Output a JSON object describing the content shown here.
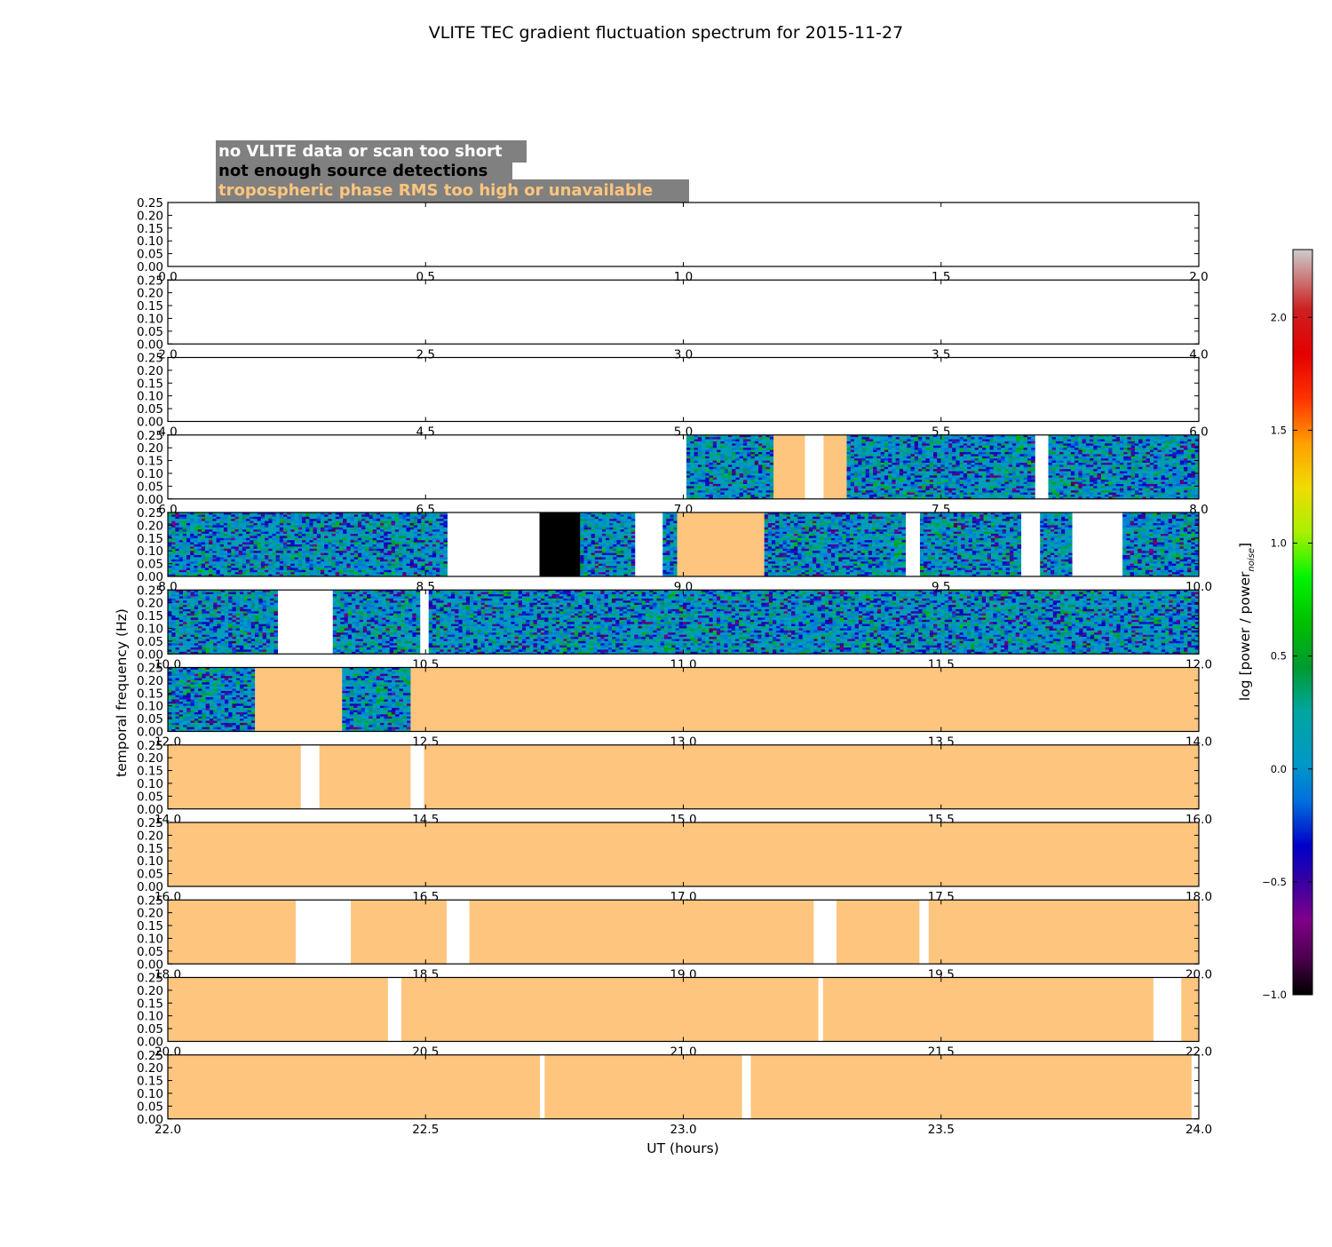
{
  "chart_data": {
    "type": "heatmap",
    "title": "VLITE TEC gradient fluctuation spectrum for 2015-11-27",
    "xlabel": "UT (hours)",
    "ylabel": "temporal frequency (Hz)",
    "y_ticks": [
      "0.00",
      "0.05",
      "0.10",
      "0.15",
      "0.20",
      "0.25"
    ],
    "ylim": [
      0,
      0.25
    ],
    "legend": {
      "position": "top-left",
      "entries": [
        {
          "label": "no VLITE data or scan too short",
          "color": "#ffffff",
          "category": "nodata"
        },
        {
          "label": "not enough source detections",
          "color": "#000000",
          "category": "nodet"
        },
        {
          "label": "tropospheric phase RMS too high or unavailable",
          "color": "#fec57e",
          "category": "tropo"
        }
      ]
    },
    "colorbar": {
      "label": "log [power / power",
      "label_subscript": "noise",
      "label_close": "]",
      "range": [
        -1.0,
        2.3
      ],
      "tick_values": [
        -1.0,
        -0.5,
        0.0,
        0.5,
        1.0,
        1.5,
        2.0
      ],
      "ticks": [
        "−1.0",
        "−0.5",
        "0.0",
        "0.5",
        "1.0",
        "1.5",
        "2.0"
      ],
      "colormap": "spectral"
    },
    "panels": [
      {
        "xlim": [
          0,
          2
        ],
        "xticks": [
          "0.0",
          "0.5",
          "1.0",
          "1.5",
          "2.0"
        ],
        "segments": []
      },
      {
        "xlim": [
          2,
          4
        ],
        "xticks": [
          "2.0",
          "2.5",
          "3.0",
          "3.5",
          "4.0"
        ],
        "segments": []
      },
      {
        "xlim": [
          4,
          6
        ],
        "xticks": [
          "4.0",
          "4.5",
          "5.0",
          "5.5",
          "6.0"
        ],
        "segments": []
      },
      {
        "xlim": [
          6,
          8
        ],
        "xticks": [
          "6.0",
          "6.5",
          "7.0",
          "7.5",
          "8.0"
        ],
        "segments": [
          {
            "start": 7.006,
            "end": 7.175,
            "type": "data"
          },
          {
            "start": 7.175,
            "end": 7.236,
            "type": "tropo"
          },
          {
            "start": 7.272,
            "end": 7.317,
            "type": "tropo"
          },
          {
            "start": 7.317,
            "end": 7.682,
            "type": "data"
          },
          {
            "start": 7.708,
            "end": 8.0,
            "type": "data"
          }
        ]
      },
      {
        "xlim": [
          8,
          10
        ],
        "xticks": [
          "8.0",
          "8.5",
          "9.0",
          "9.5",
          "10.0"
        ],
        "segments": [
          {
            "start": 8.0,
            "end": 8.542,
            "type": "data"
          },
          {
            "start": 8.721,
            "end": 8.8,
            "type": "nodet"
          },
          {
            "start": 8.8,
            "end": 8.906,
            "type": "data"
          },
          {
            "start": 8.96,
            "end": 8.988,
            "type": "data"
          },
          {
            "start": 8.988,
            "end": 9.157,
            "type": "tropo"
          },
          {
            "start": 9.157,
            "end": 9.431,
            "type": "data"
          },
          {
            "start": 9.459,
            "end": 9.655,
            "type": "data"
          },
          {
            "start": 9.692,
            "end": 9.754,
            "type": "data"
          },
          {
            "start": 9.852,
            "end": 10.0,
            "type": "data"
          }
        ]
      },
      {
        "xlim": [
          10,
          12
        ],
        "xticks": [
          "10.0",
          "10.5",
          "11.0",
          "11.5",
          "12.0"
        ],
        "segments": [
          {
            "start": 10.0,
            "end": 10.213,
            "type": "data"
          },
          {
            "start": 10.32,
            "end": 10.489,
            "type": "data"
          },
          {
            "start": 10.506,
            "end": 12.0,
            "type": "data"
          }
        ]
      },
      {
        "xlim": [
          12,
          14
        ],
        "xticks": [
          "12.0",
          "12.5",
          "13.0",
          "13.5",
          "14.0"
        ],
        "segments": [
          {
            "start": 12.0,
            "end": 12.169,
            "type": "data"
          },
          {
            "start": 12.169,
            "end": 12.338,
            "type": "tropo"
          },
          {
            "start": 12.338,
            "end": 12.471,
            "type": "data"
          },
          {
            "start": 12.471,
            "end": 14.0,
            "type": "tropo"
          }
        ]
      },
      {
        "xlim": [
          14,
          16
        ],
        "xticks": [
          "14.0",
          "14.5",
          "15.0",
          "15.5",
          "16.0"
        ],
        "segments": [
          {
            "start": 14.0,
            "end": 14.258,
            "type": "tropo"
          },
          {
            "start": 14.294,
            "end": 14.471,
            "type": "tropo"
          },
          {
            "start": 14.497,
            "end": 16.0,
            "type": "tropo"
          }
        ]
      },
      {
        "xlim": [
          16,
          18
        ],
        "xticks": [
          "16.0",
          "16.5",
          "17.0",
          "17.5",
          "18.0"
        ],
        "segments": [
          {
            "start": 16.0,
            "end": 18.0,
            "type": "tropo"
          }
        ]
      },
      {
        "xlim": [
          18,
          20
        ],
        "xticks": [
          "18.0",
          "18.5",
          "19.0",
          "19.5",
          "20.0"
        ],
        "segments": [
          {
            "start": 18.0,
            "end": 18.248,
            "type": "tropo"
          },
          {
            "start": 18.355,
            "end": 18.541,
            "type": "tropo"
          },
          {
            "start": 18.585,
            "end": 19.253,
            "type": "tropo"
          },
          {
            "start": 19.297,
            "end": 19.458,
            "type": "tropo"
          },
          {
            "start": 19.476,
            "end": 20.0,
            "type": "tropo"
          }
        ]
      },
      {
        "xlim": [
          20,
          22
        ],
        "xticks": [
          "20.0",
          "20.5",
          "21.0",
          "21.5",
          "22.0"
        ],
        "segments": [
          {
            "start": 20.0,
            "end": 20.427,
            "type": "tropo"
          },
          {
            "start": 20.453,
            "end": 21.262,
            "type": "tropo"
          },
          {
            "start": 21.271,
            "end": 21.912,
            "type": "tropo"
          },
          {
            "start": 21.966,
            "end": 22.0,
            "type": "tropo"
          }
        ]
      },
      {
        "xlim": [
          22,
          24
        ],
        "xticks": [
          "22.0",
          "22.5",
          "23.0",
          "23.5",
          "24.0"
        ],
        "segments": [
          {
            "start": 22.0,
            "end": 22.722,
            "type": "tropo"
          },
          {
            "start": 22.731,
            "end": 23.114,
            "type": "tropo"
          },
          {
            "start": 23.131,
            "end": 23.986,
            "type": "tropo"
          }
        ]
      }
    ]
  }
}
